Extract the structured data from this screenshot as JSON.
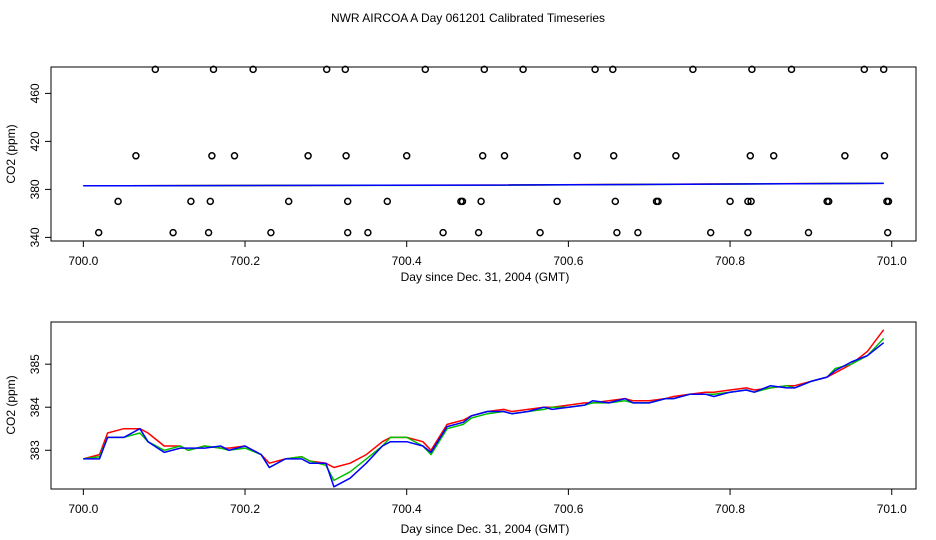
{
  "figure_title": "NWR AIRCOA A  Day 061201  Calibrated Timeseries",
  "colors": {
    "series_red": "#ff0000",
    "series_green": "#00c000",
    "series_blue": "#0000ff",
    "axis": "#000000"
  },
  "chart_data": [
    {
      "type": "scatter+line",
      "title": "NWR AIRCOA A  Day 061201  Calibrated Timeseries",
      "xlabel": "Day since Dec. 31, 2004 (GMT)",
      "ylabel": "CO2 (ppm)",
      "xlim": [
        699.96,
        701.03
      ],
      "ylim": [
        337,
        482
      ],
      "xticks": [
        700.0,
        700.2,
        700.4,
        700.6,
        700.8,
        701.0
      ],
      "xtick_labels": [
        "700.0",
        "700.2",
        "700.4",
        "700.6",
        "700.8",
        "701.0"
      ],
      "yticks": [
        340,
        380,
        420,
        460
      ],
      "ytick_labels": [
        "340",
        "380",
        "420",
        "460"
      ],
      "grid": false,
      "calibration_points": {
        "name": "calibration / flag points",
        "marker": "open circle",
        "points": [
          [
            700.089,
            480
          ],
          [
            700.161,
            480
          ],
          [
            700.21,
            480
          ],
          [
            700.301,
            480
          ],
          [
            700.324,
            480
          ],
          [
            700.423,
            480
          ],
          [
            700.496,
            480
          ],
          [
            700.544,
            480
          ],
          [
            700.633,
            480
          ],
          [
            700.655,
            480
          ],
          [
            700.754,
            480
          ],
          [
            700.827,
            480
          ],
          [
            700.876,
            480
          ],
          [
            700.966,
            480
          ],
          [
            700.99,
            480
          ],
          [
            700.065,
            408
          ],
          [
            700.159,
            408
          ],
          [
            700.187,
            408
          ],
          [
            700.278,
            408
          ],
          [
            700.325,
            408
          ],
          [
            700.4,
            408
          ],
          [
            700.494,
            408
          ],
          [
            700.521,
            408
          ],
          [
            700.611,
            408
          ],
          [
            700.656,
            408
          ],
          [
            700.733,
            408
          ],
          [
            700.825,
            408
          ],
          [
            700.854,
            408
          ],
          [
            700.942,
            408
          ],
          [
            700.991,
            408
          ],
          [
            700.043,
            370
          ],
          [
            700.133,
            370
          ],
          [
            700.157,
            370
          ],
          [
            700.254,
            370
          ],
          [
            700.327,
            370
          ],
          [
            700.376,
            370
          ],
          [
            700.467,
            370
          ],
          [
            700.469,
            370
          ],
          [
            700.492,
            370
          ],
          [
            700.586,
            370
          ],
          [
            700.658,
            370
          ],
          [
            700.709,
            370
          ],
          [
            700.711,
            370
          ],
          [
            700.8,
            370
          ],
          [
            700.822,
            370
          ],
          [
            700.826,
            370
          ],
          [
            700.92,
            370
          ],
          [
            700.922,
            370
          ],
          [
            700.994,
            370
          ],
          [
            700.996,
            370
          ],
          [
            700.019,
            344
          ],
          [
            700.111,
            344
          ],
          [
            700.155,
            344
          ],
          [
            700.232,
            344
          ],
          [
            700.327,
            344
          ],
          [
            700.352,
            344
          ],
          [
            700.445,
            344
          ],
          [
            700.489,
            344
          ],
          [
            700.565,
            344
          ],
          [
            700.66,
            344
          ],
          [
            700.686,
            344
          ],
          [
            700.776,
            344
          ],
          [
            700.822,
            344
          ],
          [
            700.897,
            344
          ],
          [
            700.995,
            344
          ]
        ]
      },
      "series": [
        {
          "name": "red",
          "color": "#ff0000",
          "x": [
            700.0,
            700.5,
            700.99
          ],
          "y": [
            383.0,
            383.6,
            385.2
          ]
        },
        {
          "name": "green",
          "color": "#00c000",
          "x": [
            700.0,
            700.5,
            700.99
          ],
          "y": [
            383.0,
            383.5,
            385.1
          ]
        },
        {
          "name": "blue",
          "color": "#0000ff",
          "x": [
            700.0,
            700.5,
            700.99
          ],
          "y": [
            383.0,
            383.6,
            385.0
          ]
        }
      ]
    },
    {
      "type": "line",
      "title": "",
      "xlabel": "Day since Dec. 31, 2004 (GMT)",
      "ylabel": "CO2 (ppm)",
      "xlim": [
        699.96,
        701.03
      ],
      "ylim": [
        382.1,
        385.98
      ],
      "xticks": [
        700.0,
        700.2,
        700.4,
        700.6,
        700.8,
        701.0
      ],
      "xtick_labels": [
        "700.0",
        "700.2",
        "700.4",
        "700.6",
        "700.8",
        "701.0"
      ],
      "yticks": [
        383,
        384,
        385
      ],
      "ytick_labels": [
        "383",
        "384",
        "385"
      ],
      "grid": false,
      "x": [
        700.0,
        700.02,
        700.03,
        700.05,
        700.07,
        700.08,
        700.1,
        700.12,
        700.13,
        700.15,
        700.17,
        700.18,
        700.2,
        700.22,
        700.23,
        700.25,
        700.27,
        700.28,
        700.3,
        700.31,
        700.33,
        700.35,
        700.37,
        700.38,
        700.4,
        700.42,
        700.43,
        700.45,
        700.47,
        700.48,
        700.5,
        700.52,
        700.53,
        700.55,
        700.57,
        700.58,
        700.6,
        700.62,
        700.63,
        700.65,
        700.67,
        700.68,
        700.7,
        700.72,
        700.73,
        700.75,
        700.77,
        700.78,
        700.8,
        700.82,
        700.83,
        700.85,
        700.87,
        700.88,
        700.9,
        700.92,
        700.93,
        700.95,
        700.97,
        700.99
      ],
      "series": [
        {
          "name": "red",
          "color": "#ff0000",
          "y": [
            382.8,
            382.9,
            383.4,
            383.5,
            383.5,
            383.4,
            383.1,
            383.1,
            383.0,
            383.1,
            383.05,
            383.05,
            383.1,
            382.9,
            382.7,
            382.8,
            382.85,
            382.75,
            382.7,
            382.6,
            382.7,
            382.9,
            383.2,
            383.3,
            383.3,
            383.2,
            383.0,
            383.6,
            383.7,
            383.8,
            383.9,
            383.95,
            383.9,
            383.95,
            384.0,
            384.0,
            384.05,
            384.1,
            384.1,
            384.15,
            384.2,
            384.15,
            384.15,
            384.2,
            384.25,
            384.3,
            384.35,
            384.35,
            384.4,
            384.45,
            384.4,
            384.45,
            384.5,
            384.5,
            384.6,
            384.7,
            384.8,
            385.0,
            385.3,
            385.8
          ]
        },
        {
          "name": "green",
          "color": "#00c000",
          "y": [
            382.8,
            382.85,
            383.3,
            383.3,
            383.4,
            383.2,
            383.0,
            383.1,
            383.0,
            383.1,
            383.05,
            383.0,
            383.05,
            382.9,
            382.6,
            382.8,
            382.85,
            382.75,
            382.65,
            382.3,
            382.5,
            382.8,
            383.1,
            383.3,
            383.3,
            383.1,
            382.9,
            383.5,
            383.6,
            383.75,
            383.85,
            383.9,
            383.85,
            383.9,
            383.95,
            384.0,
            384.0,
            384.05,
            384.1,
            384.1,
            384.15,
            384.1,
            384.1,
            384.2,
            384.2,
            384.3,
            384.3,
            384.3,
            384.35,
            384.4,
            384.35,
            384.45,
            384.5,
            384.45,
            384.6,
            384.7,
            384.9,
            385.0,
            385.2,
            385.6
          ]
        },
        {
          "name": "blue",
          "color": "#0000ff",
          "y": [
            382.8,
            382.8,
            383.3,
            383.3,
            383.5,
            383.2,
            382.95,
            383.05,
            383.05,
            383.05,
            383.1,
            383.0,
            383.1,
            382.9,
            382.6,
            382.8,
            382.8,
            382.7,
            382.7,
            382.15,
            382.35,
            382.7,
            383.1,
            383.2,
            383.2,
            383.1,
            382.95,
            383.55,
            383.65,
            383.8,
            383.9,
            383.9,
            383.85,
            383.9,
            384.0,
            383.95,
            384.0,
            384.05,
            384.15,
            384.1,
            384.2,
            384.1,
            384.1,
            384.2,
            384.2,
            384.3,
            384.3,
            384.25,
            384.35,
            384.4,
            384.35,
            384.5,
            384.45,
            384.45,
            384.6,
            384.7,
            384.85,
            385.05,
            385.2,
            385.5
          ]
        }
      ]
    }
  ]
}
